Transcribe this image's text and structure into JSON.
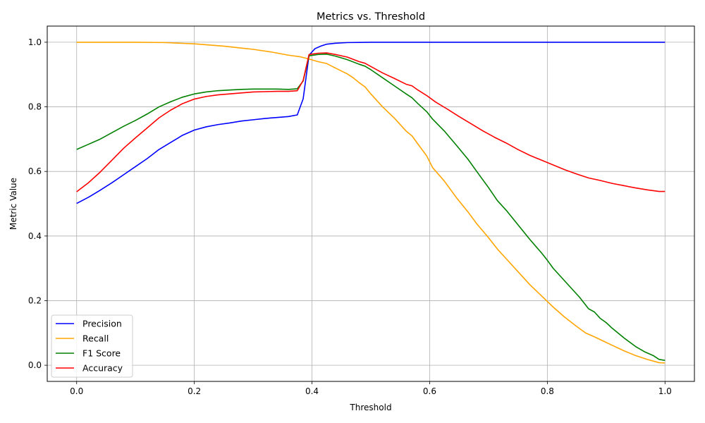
{
  "chart_data": {
    "type": "line",
    "title": "Metrics vs. Threshold",
    "xlabel": "Threshold",
    "ylabel": "Metric Value",
    "xlim": [
      -0.05,
      1.05
    ],
    "ylim": [
      -0.05,
      1.05
    ],
    "xticks": [
      0.0,
      0.2,
      0.4,
      0.6,
      0.8,
      1.0
    ],
    "xtick_labels": [
      "0.0",
      "0.2",
      "0.4",
      "0.6",
      "0.8",
      "1.0"
    ],
    "yticks": [
      0.0,
      0.2,
      0.4,
      0.6,
      0.8,
      1.0
    ],
    "ytick_labels": [
      "0.0",
      "0.2",
      "0.4",
      "0.6",
      "0.8",
      "1.0"
    ],
    "grid": true,
    "legend_position": "lower-left",
    "series": [
      {
        "name": "Precision",
        "color": "#0000ff",
        "points": [
          [
            0.0,
            0.501
          ],
          [
            0.02,
            0.52
          ],
          [
            0.04,
            0.542
          ],
          [
            0.06,
            0.565
          ],
          [
            0.08,
            0.59
          ],
          [
            0.1,
            0.615
          ],
          [
            0.12,
            0.64
          ],
          [
            0.14,
            0.668
          ],
          [
            0.16,
            0.69
          ],
          [
            0.18,
            0.712
          ],
          [
            0.2,
            0.728
          ],
          [
            0.22,
            0.738
          ],
          [
            0.24,
            0.745
          ],
          [
            0.26,
            0.75
          ],
          [
            0.28,
            0.756
          ],
          [
            0.3,
            0.76
          ],
          [
            0.32,
            0.764
          ],
          [
            0.34,
            0.767
          ],
          [
            0.36,
            0.77
          ],
          [
            0.375,
            0.775
          ],
          [
            0.385,
            0.825
          ],
          [
            0.395,
            0.96
          ],
          [
            0.405,
            0.98
          ],
          [
            0.415,
            0.988
          ],
          [
            0.425,
            0.994
          ],
          [
            0.44,
            0.997
          ],
          [
            0.46,
            0.999
          ],
          [
            0.5,
            1.0
          ],
          [
            0.6,
            1.0
          ],
          [
            0.8,
            1.0
          ],
          [
            1.0,
            1.0
          ]
        ]
      },
      {
        "name": "Recall",
        "color": "#ffa500",
        "points": [
          [
            0.0,
            1.0
          ],
          [
            0.05,
            1.0
          ],
          [
            0.1,
            1.0
          ],
          [
            0.15,
            0.999
          ],
          [
            0.2,
            0.995
          ],
          [
            0.25,
            0.988
          ],
          [
            0.28,
            0.982
          ],
          [
            0.3,
            0.978
          ],
          [
            0.33,
            0.97
          ],
          [
            0.36,
            0.96
          ],
          [
            0.38,
            0.955
          ],
          [
            0.395,
            0.948
          ],
          [
            0.41,
            0.94
          ],
          [
            0.425,
            0.934
          ],
          [
            0.44,
            0.92
          ],
          [
            0.46,
            0.902
          ],
          [
            0.47,
            0.89
          ],
          [
            0.48,
            0.875
          ],
          [
            0.49,
            0.862
          ],
          [
            0.5,
            0.84
          ],
          [
            0.52,
            0.8
          ],
          [
            0.54,
            0.765
          ],
          [
            0.56,
            0.725
          ],
          [
            0.57,
            0.71
          ],
          [
            0.58,
            0.685
          ],
          [
            0.595,
            0.648
          ],
          [
            0.605,
            0.612
          ],
          [
            0.625,
            0.57
          ],
          [
            0.645,
            0.52
          ],
          [
            0.665,
            0.475
          ],
          [
            0.68,
            0.438
          ],
          [
            0.7,
            0.395
          ],
          [
            0.715,
            0.36
          ],
          [
            0.73,
            0.33
          ],
          [
            0.75,
            0.29
          ],
          [
            0.77,
            0.25
          ],
          [
            0.79,
            0.215
          ],
          [
            0.81,
            0.18
          ],
          [
            0.83,
            0.148
          ],
          [
            0.85,
            0.12
          ],
          [
            0.865,
            0.1
          ],
          [
            0.88,
            0.088
          ],
          [
            0.895,
            0.075
          ],
          [
            0.91,
            0.062
          ],
          [
            0.93,
            0.045
          ],
          [
            0.95,
            0.03
          ],
          [
            0.97,
            0.018
          ],
          [
            0.99,
            0.008
          ],
          [
            1.0,
            0.007
          ]
        ]
      },
      {
        "name": "F1 Score",
        "color": "#008000",
        "points": [
          [
            0.0,
            0.668
          ],
          [
            0.02,
            0.684
          ],
          [
            0.04,
            0.7
          ],
          [
            0.06,
            0.72
          ],
          [
            0.08,
            0.74
          ],
          [
            0.1,
            0.758
          ],
          [
            0.12,
            0.778
          ],
          [
            0.14,
            0.8
          ],
          [
            0.16,
            0.816
          ],
          [
            0.18,
            0.83
          ],
          [
            0.2,
            0.84
          ],
          [
            0.22,
            0.846
          ],
          [
            0.24,
            0.85
          ],
          [
            0.26,
            0.852
          ],
          [
            0.28,
            0.854
          ],
          [
            0.3,
            0.855
          ],
          [
            0.32,
            0.855
          ],
          [
            0.34,
            0.855
          ],
          [
            0.36,
            0.854
          ],
          [
            0.375,
            0.856
          ],
          [
            0.385,
            0.88
          ],
          [
            0.395,
            0.958
          ],
          [
            0.41,
            0.962
          ],
          [
            0.425,
            0.963
          ],
          [
            0.44,
            0.957
          ],
          [
            0.46,
            0.946
          ],
          [
            0.48,
            0.932
          ],
          [
            0.49,
            0.926
          ],
          [
            0.5,
            0.915
          ],
          [
            0.52,
            0.89
          ],
          [
            0.54,
            0.865
          ],
          [
            0.56,
            0.84
          ],
          [
            0.57,
            0.828
          ],
          [
            0.58,
            0.81
          ],
          [
            0.595,
            0.785
          ],
          [
            0.605,
            0.762
          ],
          [
            0.625,
            0.725
          ],
          [
            0.645,
            0.682
          ],
          [
            0.665,
            0.638
          ],
          [
            0.68,
            0.6
          ],
          [
            0.7,
            0.55
          ],
          [
            0.715,
            0.51
          ],
          [
            0.73,
            0.48
          ],
          [
            0.75,
            0.435
          ],
          [
            0.77,
            0.39
          ],
          [
            0.79,
            0.348
          ],
          [
            0.8,
            0.325
          ],
          [
            0.81,
            0.3
          ],
          [
            0.825,
            0.27
          ],
          [
            0.84,
            0.24
          ],
          [
            0.855,
            0.21
          ],
          [
            0.87,
            0.175
          ],
          [
            0.88,
            0.165
          ],
          [
            0.89,
            0.145
          ],
          [
            0.9,
            0.132
          ],
          [
            0.91,
            0.115
          ],
          [
            0.93,
            0.085
          ],
          [
            0.95,
            0.058
          ],
          [
            0.965,
            0.042
          ],
          [
            0.98,
            0.03
          ],
          [
            0.99,
            0.018
          ],
          [
            1.0,
            0.015
          ]
        ]
      },
      {
        "name": "Accuracy",
        "color": "#ff0000",
        "points": [
          [
            0.0,
            0.537
          ],
          [
            0.02,
            0.565
          ],
          [
            0.04,
            0.598
          ],
          [
            0.06,
            0.635
          ],
          [
            0.08,
            0.672
          ],
          [
            0.1,
            0.704
          ],
          [
            0.12,
            0.735
          ],
          [
            0.14,
            0.766
          ],
          [
            0.16,
            0.79
          ],
          [
            0.18,
            0.81
          ],
          [
            0.2,
            0.824
          ],
          [
            0.22,
            0.832
          ],
          [
            0.24,
            0.837
          ],
          [
            0.26,
            0.84
          ],
          [
            0.28,
            0.843
          ],
          [
            0.3,
            0.846
          ],
          [
            0.32,
            0.847
          ],
          [
            0.34,
            0.848
          ],
          [
            0.36,
            0.848
          ],
          [
            0.375,
            0.85
          ],
          [
            0.385,
            0.882
          ],
          [
            0.395,
            0.962
          ],
          [
            0.41,
            0.966
          ],
          [
            0.425,
            0.967
          ],
          [
            0.44,
            0.962
          ],
          [
            0.46,
            0.954
          ],
          [
            0.48,
            0.94
          ],
          [
            0.49,
            0.935
          ],
          [
            0.5,
            0.925
          ],
          [
            0.52,
            0.905
          ],
          [
            0.54,
            0.888
          ],
          [
            0.56,
            0.87
          ],
          [
            0.57,
            0.865
          ],
          [
            0.58,
            0.852
          ],
          [
            0.595,
            0.835
          ],
          [
            0.61,
            0.815
          ],
          [
            0.63,
            0.793
          ],
          [
            0.65,
            0.77
          ],
          [
            0.67,
            0.748
          ],
          [
            0.69,
            0.726
          ],
          [
            0.71,
            0.706
          ],
          [
            0.73,
            0.688
          ],
          [
            0.75,
            0.668
          ],
          [
            0.77,
            0.65
          ],
          [
            0.79,
            0.635
          ],
          [
            0.81,
            0.62
          ],
          [
            0.83,
            0.605
          ],
          [
            0.85,
            0.592
          ],
          [
            0.87,
            0.58
          ],
          [
            0.89,
            0.572
          ],
          [
            0.91,
            0.563
          ],
          [
            0.93,
            0.556
          ],
          [
            0.95,
            0.549
          ],
          [
            0.97,
            0.543
          ],
          [
            0.99,
            0.538
          ],
          [
            1.0,
            0.538
          ]
        ]
      }
    ]
  }
}
